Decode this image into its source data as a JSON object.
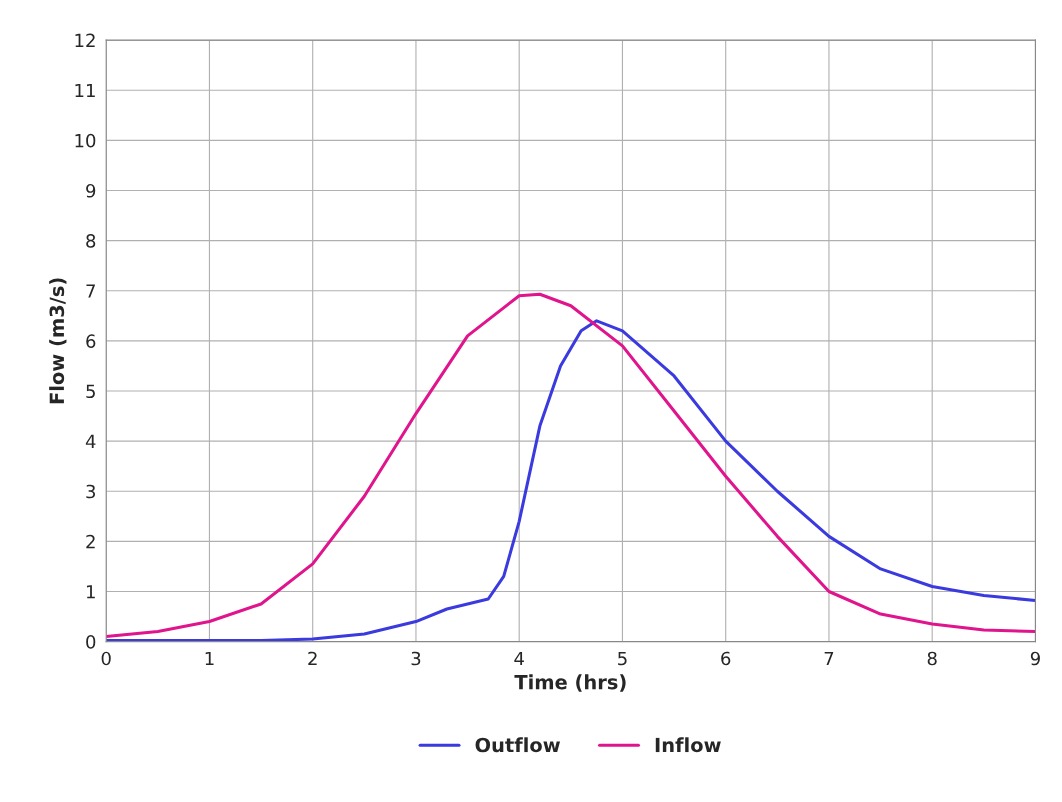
{
  "chart_data": {
    "type": "line",
    "xlabel": "Time (hrs)",
    "ylabel": "Flow (m3/s)",
    "xlim": [
      0,
      9
    ],
    "xticks": [
      0,
      1,
      2,
      3,
      4,
      5,
      6,
      7,
      8,
      9
    ],
    "ylim": [
      0,
      12
    ],
    "yticks": [
      0,
      1,
      2,
      3,
      4,
      5,
      6,
      7,
      8,
      9,
      10,
      11,
      12
    ],
    "grid": true,
    "legend": "bottom",
    "marker": "none",
    "line_style": "solid",
    "series": [
      {
        "name": "Outflow",
        "color": "#3a3adf",
        "x": [
          0,
          0.5,
          1,
          1.5,
          2,
          2.5,
          3,
          3.3,
          3.5,
          3.7,
          3.85,
          4,
          4.2,
          4.4,
          4.6,
          4.75,
          5,
          5.5,
          6,
          6.5,
          7,
          7.5,
          8,
          8.5,
          9
        ],
        "values": [
          0.02,
          0.02,
          0.02,
          0.02,
          0.05,
          0.15,
          0.4,
          0.65,
          0.75,
          0.85,
          1.3,
          2.4,
          4.3,
          5.5,
          6.2,
          6.4,
          6.2,
          5.3,
          4.0,
          3.0,
          2.1,
          1.45,
          1.1,
          0.92,
          0.82
        ]
      },
      {
        "name": "Inflow",
        "color": "#e0148c",
        "x": [
          0,
          0.5,
          1,
          1.5,
          2,
          2.5,
          3,
          3.5,
          4,
          4.2,
          4.5,
          5,
          5.5,
          6,
          6.5,
          7,
          7.5,
          8,
          8.5,
          9
        ],
        "values": [
          0.1,
          0.2,
          0.4,
          0.75,
          1.55,
          2.9,
          4.55,
          6.1,
          6.9,
          6.93,
          6.7,
          5.9,
          4.6,
          3.3,
          2.1,
          1.0,
          0.55,
          0.35,
          0.23,
          0.2
        ]
      }
    ]
  }
}
